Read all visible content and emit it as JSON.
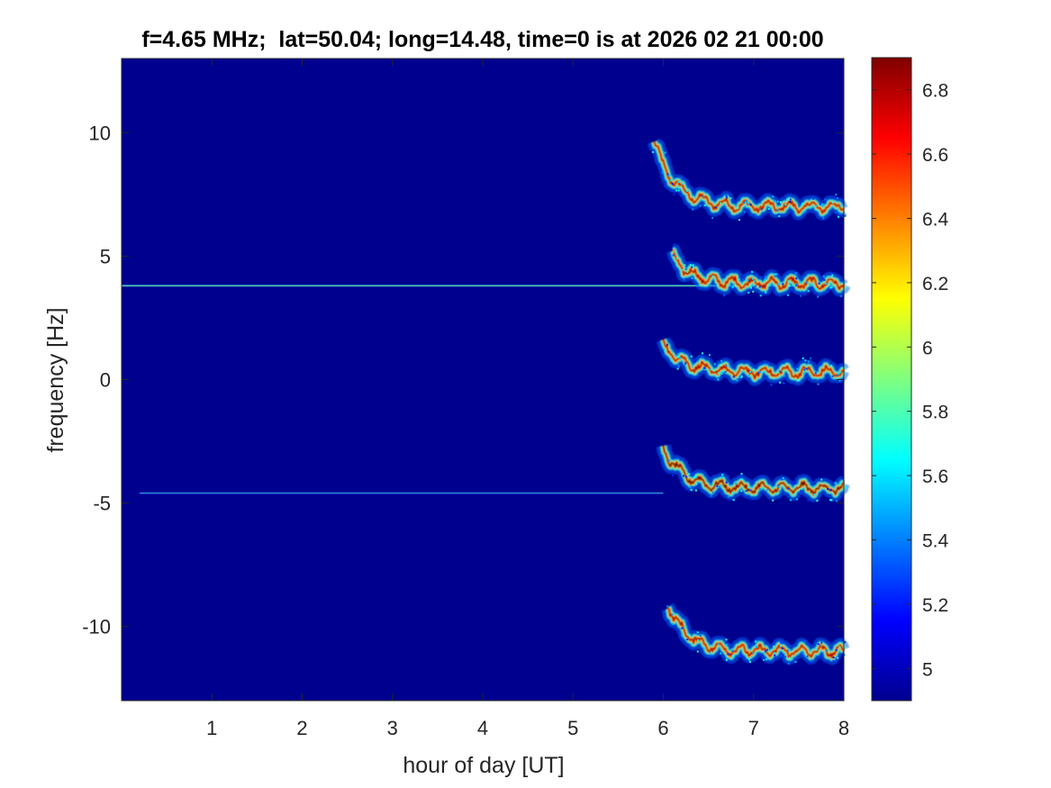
{
  "chart_data": {
    "type": "heatmap",
    "title": "f=4.65 MHz;  lat=50.04; long=14.48, time=0 is at 2026 02 21 00:00",
    "xlabel": "hour of day [UT]",
    "ylabel": "frequency [Hz]",
    "xlim": [
      0,
      8
    ],
    "ylim": [
      -13,
      13
    ],
    "xticks": [
      1,
      2,
      3,
      4,
      5,
      6,
      7,
      8
    ],
    "xtick_labels": [
      "1",
      "2",
      "3",
      "4",
      "5",
      "6",
      "7",
      "8"
    ],
    "yticks": [
      10,
      5,
      0,
      -5,
      -10
    ],
    "ytick_labels": [
      "10",
      "5",
      "0",
      "-5",
      "-10"
    ],
    "colormap": "jet",
    "background_color": "#00008f",
    "colorbar": {
      "range": [
        4.9,
        6.9
      ],
      "ticks": [
        6.8,
        6.6,
        6.4,
        6.2,
        6,
        5.8,
        5.6,
        5.4,
        5.2,
        5
      ],
      "tick_labels": [
        "6.8",
        "6.6",
        "6.4",
        "6.2",
        "6",
        "5.8",
        "5.6",
        "5.4",
        "5.2",
        "5"
      ]
    },
    "constant_lines": [
      {
        "freq_hz": 3.8,
        "x_start": 0,
        "x_end": 8,
        "level": 5.5
      },
      {
        "freq_hz": -4.6,
        "x_start": 0.2,
        "x_end": 6,
        "level": 5.3
      }
    ],
    "traces": [
      {
        "x_start": 5.9,
        "x_end": 8,
        "freq_start": 9.6,
        "freq_end": 7.0,
        "peak": 6.8
      },
      {
        "x_start": 6.1,
        "x_end": 8,
        "freq_start": 5.0,
        "freq_end": 3.9,
        "peak": 6.8
      },
      {
        "x_start": 6.0,
        "x_end": 8,
        "freq_start": 1.5,
        "freq_end": 0.3,
        "peak": 6.8
      },
      {
        "x_start": 6.0,
        "x_end": 8,
        "freq_start": -2.8,
        "freq_end": -4.4,
        "peak": 6.9
      },
      {
        "x_start": 6.05,
        "x_end": 8,
        "freq_start": -9.1,
        "freq_end": -11.0,
        "peak": 6.8
      }
    ],
    "grid": false
  }
}
